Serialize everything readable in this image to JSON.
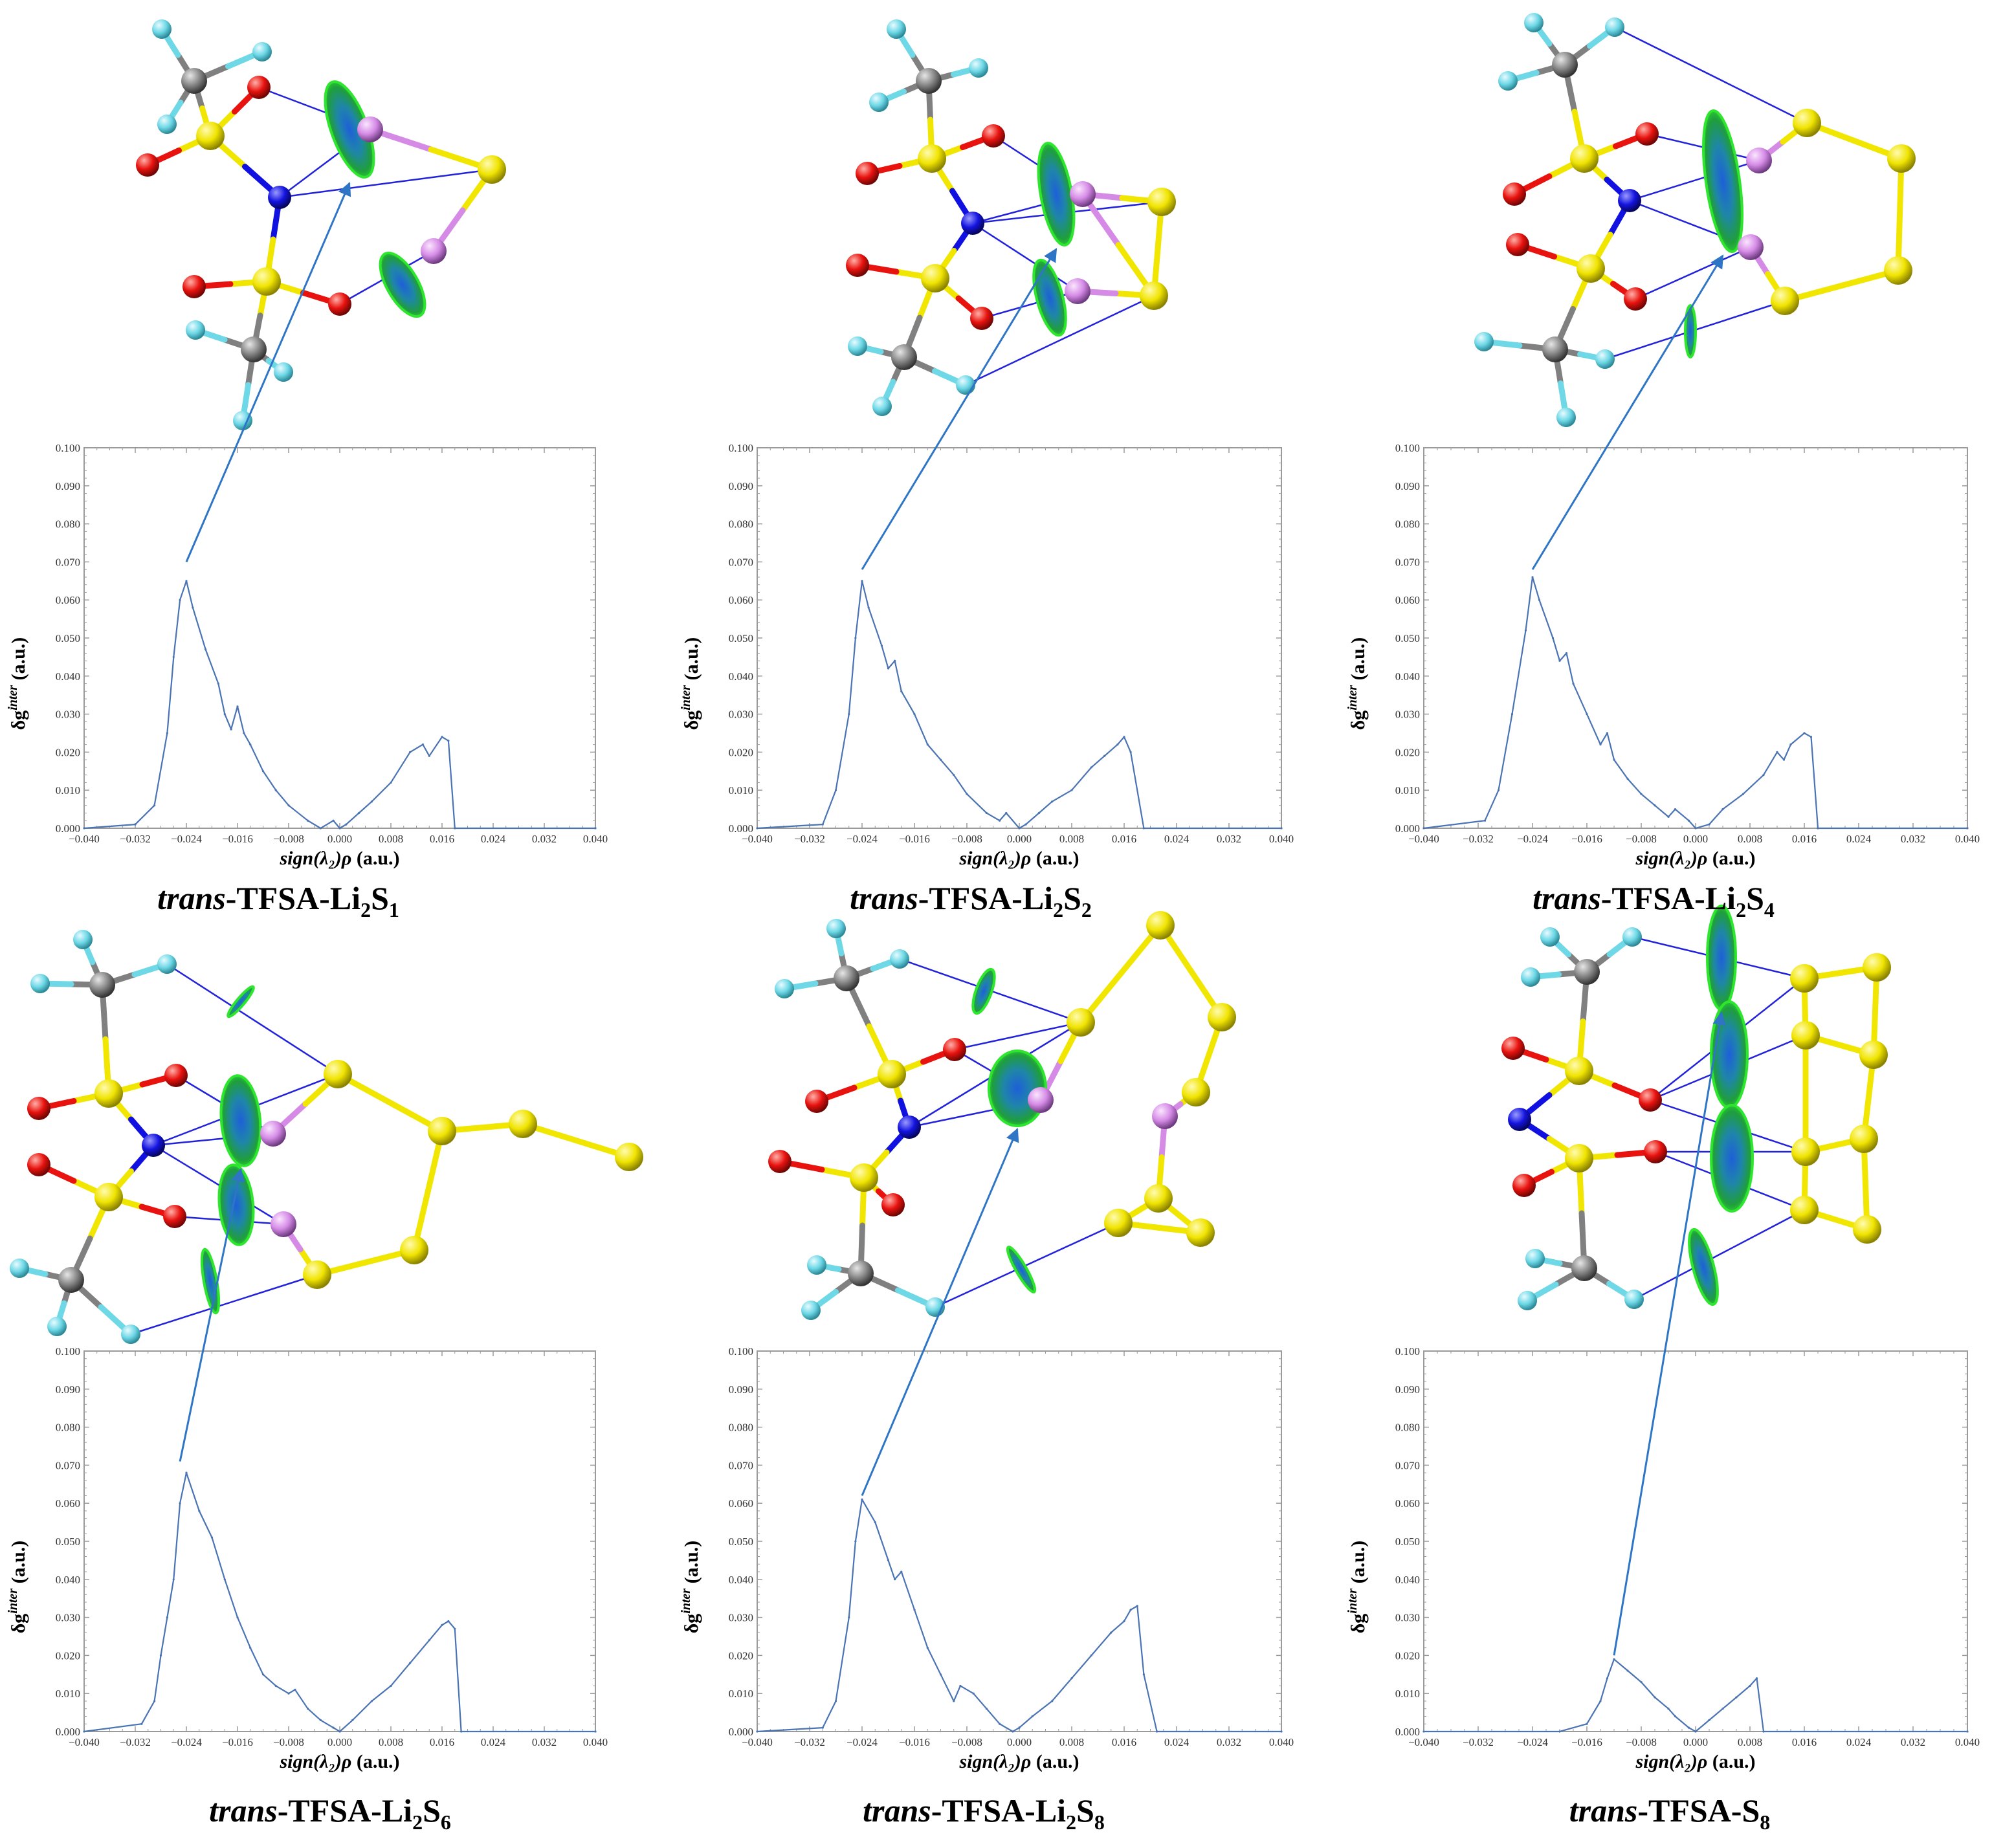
{
  "figure": {
    "colors": {
      "curve": "#4a73b3",
      "arrow": "#2f75c6",
      "frame": "#9a9a9a",
      "sulfur": "#f0e600",
      "oxygen": "#e8120e",
      "nitrogen": "#1010e0",
      "carbon": "#808080",
      "fluorine": "#6ed8e6",
      "lithium": "#d58be6",
      "nci_surface": "#2ee62e",
      "nci_core": "#1e6fd9",
      "bond_path": "#2222dd"
    },
    "icons": [
      "molecular-structure-icon",
      "nci-isosurface-icon"
    ]
  },
  "chart_data": [
    {
      "type": "line",
      "title": {
        "prefix": "trans",
        "main": "-TFSA-Li",
        "sub1": "2",
        "mid": "S",
        "sub2": "1"
      },
      "xlabel": "sign(λ₂)ρ (a.u.)",
      "ylabel": "δg^inter (a.u.)",
      "xlim": [
        -0.04,
        0.04
      ],
      "ylim": [
        0,
        0.1
      ],
      "xticks": [
        "−0.040",
        "−0.032",
        "−0.024",
        "−0.016",
        "−0.008",
        "0.000",
        "0.008",
        "0.016",
        "0.024",
        "0.032",
        "0.040"
      ],
      "yticks": [
        "0.000",
        "0.010",
        "0.020",
        "0.030",
        "0.040",
        "0.050",
        "0.060",
        "0.070",
        "0.080",
        "0.090",
        "0.100"
      ],
      "x": [
        -0.04,
        -0.032,
        -0.029,
        -0.027,
        -0.026,
        -0.025,
        -0.024,
        -0.023,
        -0.021,
        -0.019,
        -0.018,
        -0.017,
        -0.016,
        -0.015,
        -0.014,
        -0.012,
        -0.01,
        -0.008,
        -0.005,
        -0.003,
        -0.001,
        0.0,
        0.001,
        0.003,
        0.005,
        0.008,
        0.011,
        0.013,
        0.014,
        0.016,
        0.017,
        0.018,
        0.04
      ],
      "y": [
        0.0,
        0.001,
        0.006,
        0.025,
        0.045,
        0.06,
        0.065,
        0.058,
        0.047,
        0.038,
        0.03,
        0.026,
        0.032,
        0.025,
        0.022,
        0.015,
        0.01,
        0.006,
        0.002,
        0.0,
        0.002,
        0.0,
        0.001,
        0.004,
        0.007,
        0.012,
        0.02,
        0.022,
        0.019,
        0.024,
        0.023,
        0.0,
        0.0
      ],
      "arrow_peak": [
        -0.024,
        0.07
      ]
    },
    {
      "type": "line",
      "title": {
        "prefix": "trans",
        "main": "-TFSA-Li",
        "sub1": "2",
        "mid": "S",
        "sub2": "2"
      },
      "xlabel": "sign(λ₂)ρ (a.u.)",
      "ylabel": "δg^inter (a.u.)",
      "xlim": [
        -0.04,
        0.04
      ],
      "ylim": [
        0,
        0.1
      ],
      "xticks": [
        "−0.040",
        "−0.032",
        "−0.024",
        "−0.016",
        "−0.008",
        "0.000",
        "0.008",
        "0.016",
        "0.024",
        "0.032",
        "0.040"
      ],
      "yticks": [
        "0.000",
        "0.010",
        "0.020",
        "0.030",
        "0.040",
        "0.050",
        "0.060",
        "0.070",
        "0.080",
        "0.090",
        "0.100"
      ],
      "x": [
        -0.04,
        -0.03,
        -0.028,
        -0.026,
        -0.025,
        -0.024,
        -0.023,
        -0.021,
        -0.02,
        -0.019,
        -0.018,
        -0.016,
        -0.014,
        -0.012,
        -0.01,
        -0.008,
        -0.005,
        -0.003,
        -0.002,
        0.0,
        0.001,
        0.003,
        0.005,
        0.008,
        0.011,
        0.013,
        0.015,
        0.016,
        0.017,
        0.019,
        0.04
      ],
      "y": [
        0.0,
        0.001,
        0.01,
        0.03,
        0.05,
        0.065,
        0.058,
        0.048,
        0.042,
        0.044,
        0.036,
        0.03,
        0.022,
        0.018,
        0.014,
        0.009,
        0.004,
        0.002,
        0.004,
        0.0,
        0.001,
        0.004,
        0.007,
        0.01,
        0.016,
        0.019,
        0.022,
        0.024,
        0.02,
        0.0,
        0.0
      ],
      "arrow_peak": [
        -0.024,
        0.068
      ]
    },
    {
      "type": "line",
      "title": {
        "prefix": "trans",
        "main": "-TFSA-Li",
        "sub1": "2",
        "mid": "S",
        "sub2": "4"
      },
      "xlabel": "sign(λ₂)ρ (a.u.)",
      "ylabel": "δg^inter (a.u.)",
      "xlim": [
        -0.04,
        0.04
      ],
      "ylim": [
        0,
        0.1
      ],
      "xticks": [
        "−0.040",
        "−0.032",
        "−0.024",
        "−0.016",
        "−0.008",
        "0.000",
        "0.008",
        "0.016",
        "0.024",
        "0.032",
        "0.040"
      ],
      "yticks": [
        "0.000",
        "0.010",
        "0.020",
        "0.030",
        "0.040",
        "0.050",
        "0.060",
        "0.070",
        "0.080",
        "0.090",
        "0.100"
      ],
      "x": [
        -0.04,
        -0.031,
        -0.029,
        -0.027,
        -0.025,
        -0.024,
        -0.023,
        -0.021,
        -0.02,
        -0.019,
        -0.018,
        -0.016,
        -0.014,
        -0.013,
        -0.012,
        -0.01,
        -0.008,
        -0.006,
        -0.004,
        -0.003,
        -0.001,
        0.0,
        0.002,
        0.004,
        0.007,
        0.01,
        0.012,
        0.013,
        0.014,
        0.016,
        0.017,
        0.018,
        0.04
      ],
      "y": [
        0.0,
        0.002,
        0.01,
        0.03,
        0.052,
        0.066,
        0.06,
        0.05,
        0.044,
        0.046,
        0.038,
        0.03,
        0.022,
        0.025,
        0.018,
        0.013,
        0.009,
        0.006,
        0.003,
        0.005,
        0.002,
        0.0,
        0.001,
        0.005,
        0.009,
        0.014,
        0.02,
        0.018,
        0.022,
        0.025,
        0.024,
        0.0,
        0.0
      ],
      "arrow_peak": [
        -0.024,
        0.068
      ]
    },
    {
      "type": "line",
      "title": {
        "prefix": "trans",
        "main": "-TFSA-Li",
        "sub1": "2",
        "mid": "S",
        "sub2": "6"
      },
      "xlabel": "sign(λ₂)ρ (a.u.)",
      "ylabel": "δg^inter (a.u.)",
      "xlim": [
        -0.04,
        0.04
      ],
      "ylim": [
        0,
        0.1
      ],
      "xticks": [
        "−0.040",
        "−0.032",
        "−0.024",
        "−0.016",
        "−0.008",
        "0.000",
        "0.008",
        "0.016",
        "0.024",
        "0.032",
        "0.040"
      ],
      "yticks": [
        "0.000",
        "0.010",
        "0.020",
        "0.030",
        "0.040",
        "0.050",
        "0.060",
        "0.070",
        "0.080",
        "0.090",
        "0.100"
      ],
      "x": [
        -0.04,
        -0.031,
        -0.029,
        -0.028,
        -0.027,
        -0.026,
        -0.025,
        -0.024,
        -0.022,
        -0.02,
        -0.018,
        -0.016,
        -0.014,
        -0.012,
        -0.01,
        -0.008,
        -0.007,
        -0.005,
        -0.003,
        -0.001,
        0.0,
        0.002,
        0.005,
        0.008,
        0.011,
        0.014,
        0.016,
        0.017,
        0.018,
        0.019,
        0.04
      ],
      "y": [
        0.0,
        0.002,
        0.008,
        0.02,
        0.03,
        0.04,
        0.06,
        0.068,
        0.058,
        0.051,
        0.04,
        0.03,
        0.022,
        0.015,
        0.012,
        0.01,
        0.011,
        0.006,
        0.003,
        0.001,
        0.0,
        0.003,
        0.008,
        0.012,
        0.018,
        0.024,
        0.028,
        0.029,
        0.027,
        0.0,
        0.0
      ],
      "arrow_peak": [
        -0.025,
        0.071
      ]
    },
    {
      "type": "line",
      "title": {
        "prefix": "trans",
        "main": "-TFSA-Li",
        "sub1": "2",
        "mid": "S",
        "sub2": "8"
      },
      "xlabel": "sign(λ₂)ρ (a.u.)",
      "ylabel": "δg^inter (a.u.)",
      "xlim": [
        -0.04,
        0.04
      ],
      "ylim": [
        0,
        0.1
      ],
      "xticks": [
        "−0.040",
        "−0.032",
        "−0.024",
        "−0.016",
        "−0.008",
        "0.000",
        "0.008",
        "0.016",
        "0.024",
        "0.032",
        "0.040"
      ],
      "yticks": [
        "0.000",
        "0.010",
        "0.020",
        "0.030",
        "0.040",
        "0.050",
        "0.060",
        "0.070",
        "0.080",
        "0.090",
        "0.100"
      ],
      "x": [
        -0.04,
        -0.03,
        -0.028,
        -0.026,
        -0.025,
        -0.024,
        -0.022,
        -0.02,
        -0.019,
        -0.018,
        -0.016,
        -0.014,
        -0.012,
        -0.01,
        -0.009,
        -0.007,
        -0.005,
        -0.003,
        -0.001,
        0.0,
        0.002,
        0.005,
        0.008,
        0.011,
        0.014,
        0.016,
        0.017,
        0.018,
        0.019,
        0.021,
        0.04
      ],
      "y": [
        0.0,
        0.001,
        0.008,
        0.03,
        0.05,
        0.061,
        0.055,
        0.045,
        0.04,
        0.042,
        0.032,
        0.022,
        0.015,
        0.008,
        0.012,
        0.01,
        0.006,
        0.002,
        0.0,
        0.001,
        0.004,
        0.008,
        0.014,
        0.02,
        0.026,
        0.029,
        0.032,
        0.033,
        0.015,
        0.0,
        0.0
      ],
      "arrow_peak": [
        -0.024,
        0.062
      ]
    },
    {
      "type": "line",
      "title": {
        "prefix": "trans",
        "main": "-TFSA-S",
        "sub1": "",
        "mid": "",
        "sub2": "8"
      },
      "xlabel": "sign(λ₂)ρ (a.u.)",
      "ylabel": "δg^inter (a.u.)",
      "xlim": [
        -0.04,
        0.04
      ],
      "ylim": [
        0,
        0.1
      ],
      "xticks": [
        "−0.040",
        "−0.032",
        "−0.024",
        "−0.016",
        "−0.008",
        "0.000",
        "0.008",
        "0.016",
        "0.024",
        "0.032",
        "0.040"
      ],
      "yticks": [
        "0.000",
        "0.010",
        "0.020",
        "0.030",
        "0.040",
        "0.050",
        "0.060",
        "0.070",
        "0.080",
        "0.090",
        "0.100"
      ],
      "x": [
        -0.04,
        -0.02,
        -0.016,
        -0.014,
        -0.013,
        -0.012,
        -0.01,
        -0.008,
        -0.006,
        -0.004,
        -0.003,
        -0.001,
        0.0,
        0.002,
        0.004,
        0.006,
        0.008,
        0.009,
        0.01,
        0.04
      ],
      "y": [
        0.0,
        0.0,
        0.002,
        0.008,
        0.014,
        0.019,
        0.016,
        0.013,
        0.009,
        0.006,
        0.004,
        0.001,
        0.0,
        0.003,
        0.006,
        0.009,
        0.012,
        0.014,
        0.0,
        0.0
      ],
      "arrow_peak": [
        -0.012,
        0.02
      ]
    }
  ]
}
